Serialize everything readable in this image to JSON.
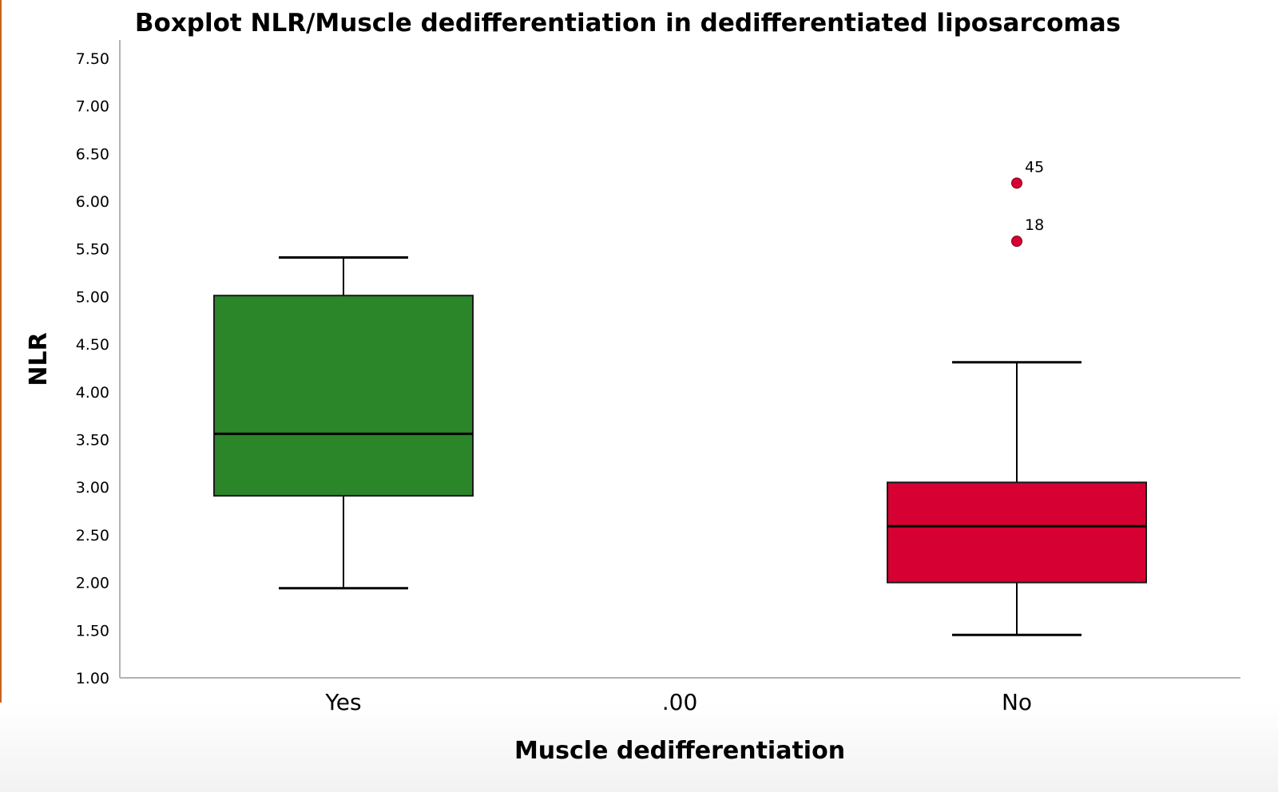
{
  "chart_data": {
    "type": "boxplot",
    "title": "Boxplot NLR/Muscle dedifferentiation in dedifferentiated liposarcomas",
    "xlabel": "Muscle dedifferentiation",
    "ylabel": "NLR",
    "categories": [
      "Yes",
      ".00",
      "No"
    ],
    "ylim": [
      1.0,
      7.6
    ],
    "yticks": [
      "1.00",
      "1.50",
      "2.00",
      "2.50",
      "3.00",
      "3.50",
      "4.00",
      "4.50",
      "5.00",
      "5.50",
      "6.00",
      "6.50",
      "7.00",
      "7.50"
    ],
    "grid": false,
    "legend": "none",
    "boxes": [
      {
        "category": "Yes",
        "whisker_low": 1.94,
        "q1": 2.91,
        "median": 3.56,
        "q3": 5.01,
        "whisker_high": 5.41,
        "color": "#2b8529",
        "outliers": []
      },
      {
        "category": "No",
        "whisker_low": 1.45,
        "q1": 2.0,
        "median": 2.59,
        "q3": 3.05,
        "whisker_high": 4.31,
        "color": "#d60032",
        "outliers": [
          {
            "value": 6.19,
            "label": "45"
          },
          {
            "value": 5.58,
            "label": "18"
          }
        ]
      }
    ]
  },
  "colors": {
    "outlier": "#d60032",
    "axis": "#b3b3b3",
    "lines": "#000000"
  }
}
